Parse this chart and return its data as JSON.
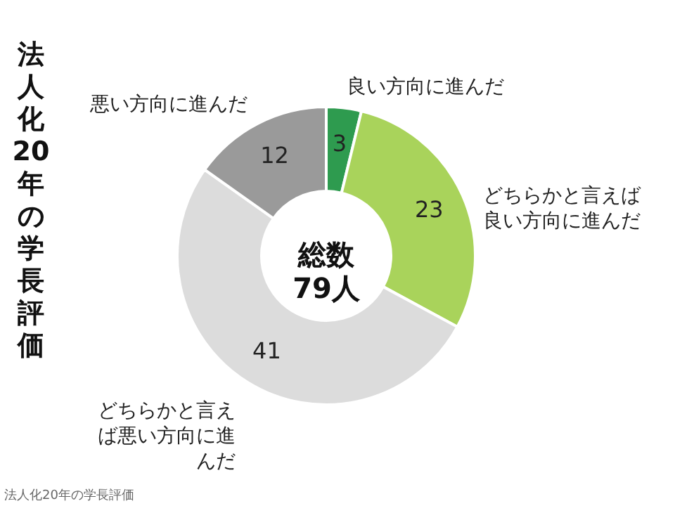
{
  "chart_data": {
    "type": "donut",
    "title": "法人化20年の学長評価",
    "categories": [
      "良い方向に進んだ",
      "どちらかと言えば良い方向に進んだ",
      "どちらかと言えば悪い方向に進んだ",
      "悪い方向に進んだ"
    ],
    "values": [
      3,
      23,
      41,
      12
    ],
    "colors": [
      "#2e9b4f",
      "#a9d35b",
      "#dcdcdc",
      "#9a9a9a"
    ],
    "data_labels": true,
    "annotations": [
      "総数\n79人",
      "法人化20年の学長評価"
    ]
  }
}
